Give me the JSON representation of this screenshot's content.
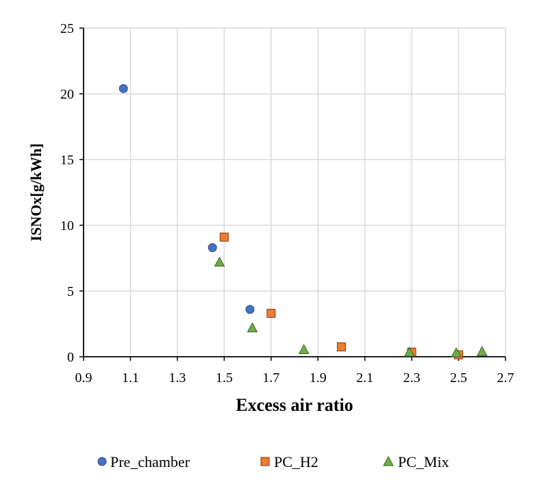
{
  "chart_data": {
    "type": "scatter",
    "title": "",
    "xlabel": "Excess air ratio",
    "ylabel": "ISNOx[g/kWh]",
    "xlim": [
      0.9,
      2.7
    ],
    "ylim": [
      0,
      25
    ],
    "xticks": [
      "0.9",
      "1.1",
      "1.3",
      "1.5",
      "1.7",
      "1.9",
      "2.1",
      "2.3",
      "2.5",
      "2.7"
    ],
    "yticks": [
      "0",
      "5",
      "10",
      "15",
      "20",
      "25"
    ],
    "grid": true,
    "legend_position": "bottom",
    "series": [
      {
        "name": "Pre_chamber",
        "marker": "circle",
        "color": "#4472C4",
        "points": [
          {
            "x": 1.07,
            "y": 20.4
          },
          {
            "x": 1.45,
            "y": 8.3
          },
          {
            "x": 1.61,
            "y": 3.6
          }
        ]
      },
      {
        "name": "PC_H2",
        "marker": "square",
        "color": "#ED7D31",
        "points": [
          {
            "x": 1.5,
            "y": 9.1
          },
          {
            "x": 1.7,
            "y": 3.3
          },
          {
            "x": 2.0,
            "y": 0.75
          },
          {
            "x": 2.3,
            "y": 0.35
          },
          {
            "x": 2.5,
            "y": 0.15
          }
        ]
      },
      {
        "name": "PC_Mix",
        "marker": "triangle",
        "color": "#70AD47",
        "points": [
          {
            "x": 1.48,
            "y": 7.2
          },
          {
            "x": 1.62,
            "y": 2.2
          },
          {
            "x": 1.84,
            "y": 0.55
          },
          {
            "x": 2.29,
            "y": 0.35
          },
          {
            "x": 2.49,
            "y": 0.3
          },
          {
            "x": 2.6,
            "y": 0.4
          }
        ]
      }
    ]
  }
}
